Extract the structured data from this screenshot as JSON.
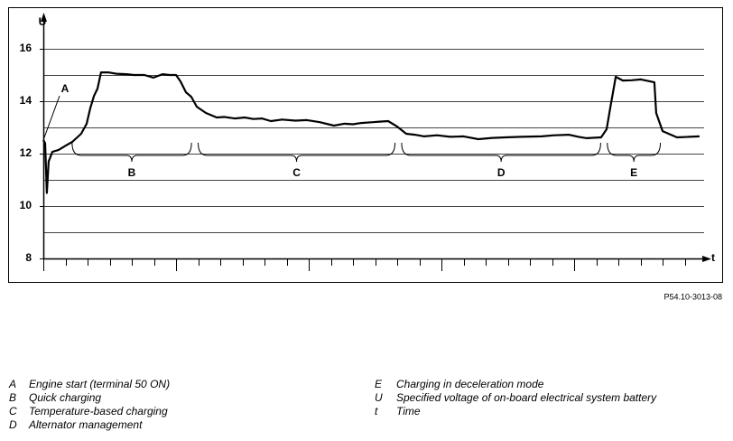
{
  "chart_data": {
    "type": "line",
    "y_label": "U",
    "x_label": "t",
    "xlim": [
      0,
      30
    ],
    "xticks": [
      0,
      1,
      2,
      3,
      4,
      5,
      6,
      7,
      8,
      9,
      10,
      11,
      12,
      13,
      14,
      15,
      16,
      17,
      18,
      19,
      20,
      21,
      22,
      23,
      24,
      25,
      26,
      27,
      28,
      29
    ],
    "ylim": [
      8,
      16.8
    ],
    "yticks": [
      8,
      10,
      12,
      14,
      16
    ],
    "grid_lines": [
      9,
      10,
      11,
      12,
      13,
      14,
      15,
      16
    ],
    "color": "#000000",
    "x": [
      0,
      0.08,
      0.16,
      0.24,
      0.41,
      0.69,
      1.0,
      1.31,
      1.71,
      1.96,
      2.12,
      2.29,
      2.45,
      2.61,
      2.94,
      3.3,
      3.76,
      4.1,
      4.57,
      4.98,
      5.39,
      5.7,
      6.0,
      6.2,
      6.45,
      6.69,
      6.94,
      7.35,
      7.84,
      8.2,
      8.65,
      9.1,
      9.5,
      9.88,
      10.29,
      10.8,
      11.4,
      11.92,
      12.5,
      13.14,
      13.6,
      14.0,
      14.37,
      14.9,
      15.2,
      15.59,
      16.0,
      16.41,
      16.8,
      17.22,
      17.8,
      18.4,
      19.0,
      19.67,
      20.3,
      20.9,
      21.6,
      22.53,
      23.1,
      23.76,
      24.2,
      24.57,
      25.22,
      25.47,
      25.63,
      25.88,
      26.2,
      26.6,
      27.02,
      27.63,
      27.71,
      28.0,
      28.65,
      29.2,
      29.67
    ],
    "values": [
      12.52,
      12.4,
      10.5,
      11.7,
      12.07,
      12.14,
      12.3,
      12.45,
      12.76,
      13.14,
      13.72,
      14.2,
      14.48,
      15.1,
      15.1,
      15.05,
      15.03,
      15.0,
      15.0,
      14.9,
      15.03,
      15.0,
      15.0,
      14.76,
      14.34,
      14.17,
      13.79,
      13.55,
      13.38,
      13.4,
      13.34,
      13.38,
      13.32,
      13.34,
      13.24,
      13.3,
      13.26,
      13.28,
      13.2,
      13.07,
      13.14,
      13.12,
      13.17,
      13.2,
      13.22,
      13.24,
      13.03,
      12.76,
      12.72,
      12.66,
      12.7,
      12.64,
      12.66,
      12.55,
      12.6,
      12.62,
      12.64,
      12.66,
      12.7,
      12.72,
      12.64,
      12.59,
      12.62,
      12.93,
      13.72,
      14.93,
      14.79,
      14.8,
      14.83,
      14.72,
      13.55,
      12.86,
      12.62,
      12.64,
      12.66
    ],
    "annotations": [
      {
        "text": "A",
        "x": 0
      },
      {
        "text": "B",
        "x": [
          1.3,
          6.7
        ]
      },
      {
        "text": "C",
        "x": [
          7.0,
          15.9
        ]
      },
      {
        "text": "D",
        "x": [
          16.2,
          25.2
        ]
      },
      {
        "text": "E",
        "x": [
          25.5,
          27.9
        ]
      }
    ]
  },
  "figure_id": "P54.10-3013-08",
  "key": [
    {
      "letter": "A",
      "text": "Engine start (terminal 50 ON)"
    },
    {
      "letter": "B",
      "text": "Quick charging"
    },
    {
      "letter": "C",
      "text": "Temperature-based charging"
    },
    {
      "letter": "D",
      "text": "Alternator management"
    },
    {
      "letter": "E",
      "text": "Charging in deceleration mode"
    },
    {
      "letter": "U",
      "text": "Specified voltage of on-board electrical system battery"
    },
    {
      "letter": "t",
      "text": "Time"
    }
  ]
}
